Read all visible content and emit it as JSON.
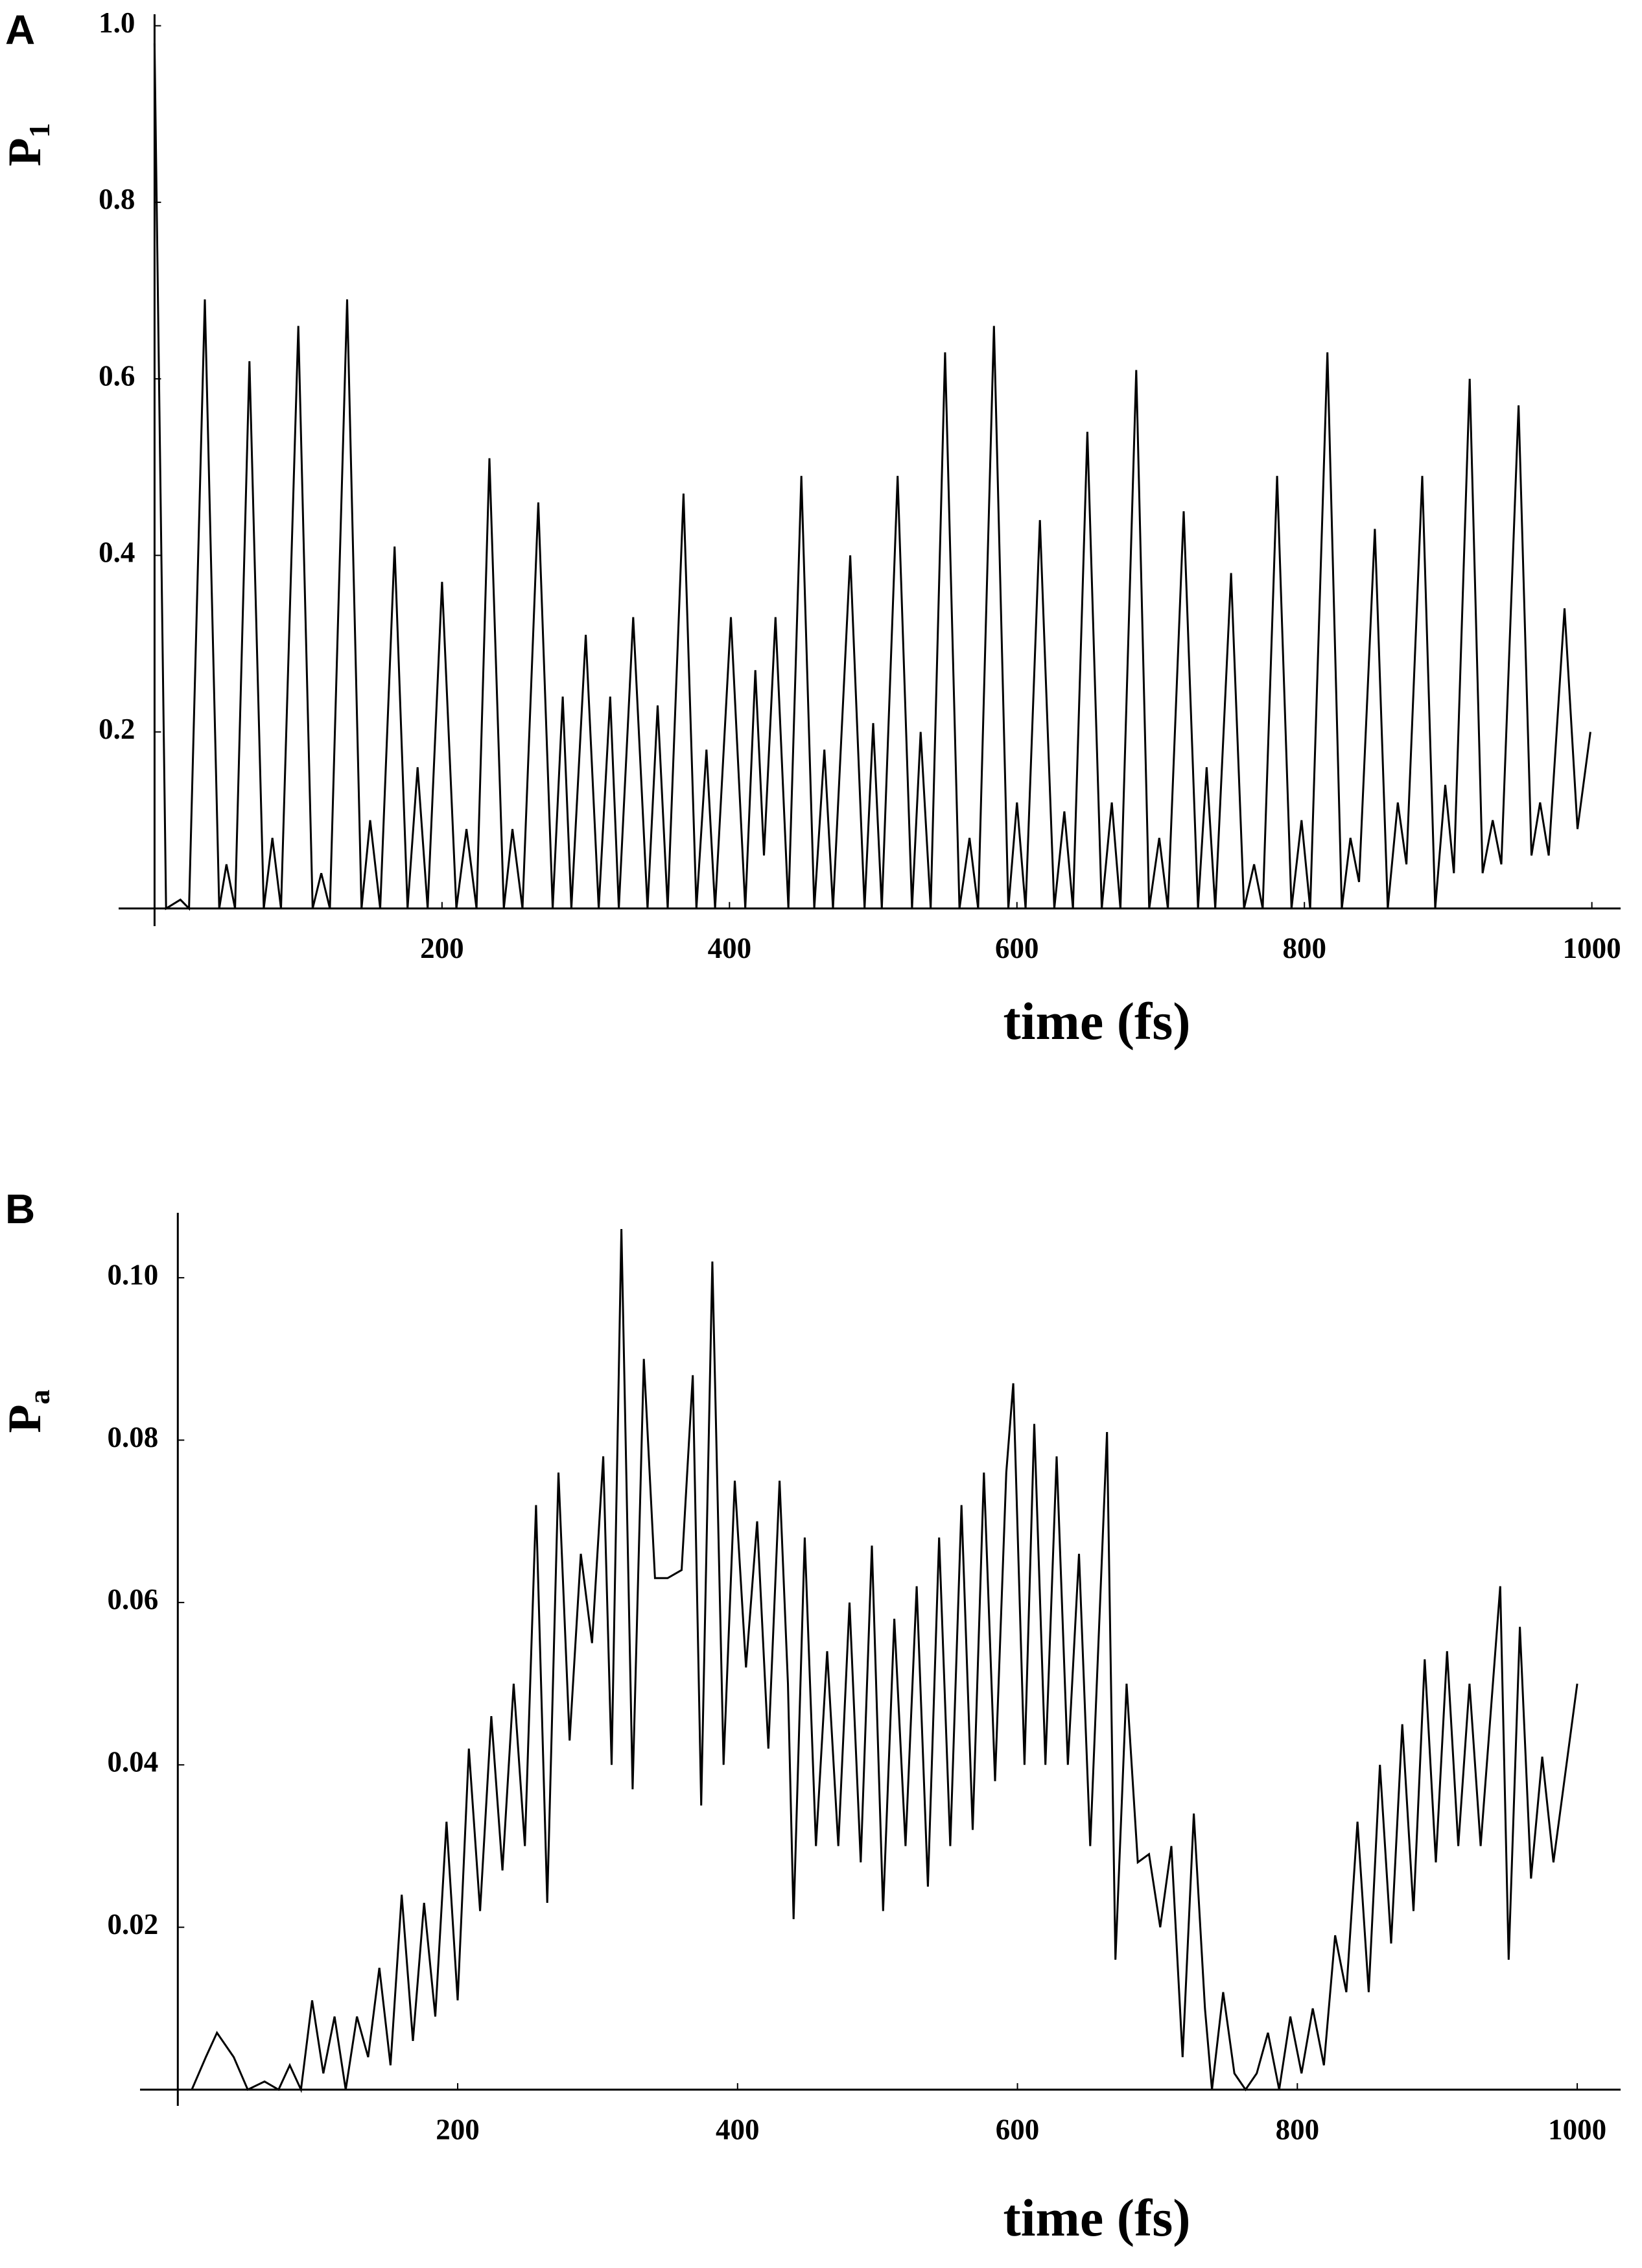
{
  "chart_data": [
    {
      "type": "line",
      "panel": "A",
      "ylabel": "P",
      "ylabel_sub": "1",
      "xlabel": "time (fs)",
      "xlim": [
        -25,
        1020
      ],
      "ylim": [
        -0.02,
        1.013
      ],
      "xticks": [
        200,
        400,
        600,
        800,
        1000
      ],
      "yticks": [
        0.2,
        0.4,
        0.6,
        0.8,
        {
          "value": 1,
          "label": "1.0"
        }
      ],
      "color": "#000000",
      "x": [
        0,
        8,
        18,
        24,
        35,
        45,
        50,
        56,
        66,
        76,
        82,
        88,
        100,
        110,
        116,
        122,
        134,
        144,
        150,
        157,
        167,
        176,
        183,
        190,
        200,
        210,
        217,
        224,
        233,
        243,
        249,
        256,
        267,
        277,
        284,
        290,
        300,
        309,
        317,
        323,
        333,
        343,
        350,
        357,
        368,
        377,
        384,
        390,
        401,
        411,
        418,
        424,
        432,
        441,
        450,
        459,
        466,
        472,
        484,
        494,
        500,
        506,
        517,
        527,
        533,
        540,
        550,
        560,
        567,
        573,
        584,
        594,
        600,
        606,
        616,
        626,
        633,
        639,
        649,
        659,
        666,
        672,
        683,
        692,
        699,
        705,
        716,
        726,
        732,
        738,
        749,
        758,
        765,
        771,
        781,
        791,
        798,
        804,
        816,
        826,
        832,
        838,
        849,
        858,
        865,
        871,
        882,
        891,
        898,
        904,
        915,
        924,
        931,
        937,
        949,
        958,
        964,
        970,
        981,
        990,
        999
      ],
      "values": [
        0.98,
        0,
        0.01,
        0,
        0.69,
        0,
        0.05,
        0,
        0.62,
        0,
        0.08,
        0,
        0.66,
        0,
        0.04,
        0,
        0.69,
        0,
        0.1,
        0,
        0.41,
        0,
        0.16,
        0,
        0.37,
        0,
        0.09,
        0,
        0.51,
        0,
        0.09,
        0,
        0.46,
        0,
        0.24,
        0,
        0.31,
        0,
        0.24,
        0,
        0.33,
        0,
        0.23,
        0,
        0.47,
        0,
        0.18,
        0,
        0.33,
        0,
        0.27,
        0.06,
        0.33,
        0,
        0.49,
        0,
        0.18,
        0,
        0.4,
        0,
        0.21,
        0,
        0.49,
        0,
        0.2,
        0,
        0.63,
        0,
        0.08,
        0,
        0.66,
        0,
        0.12,
        0,
        0.44,
        0,
        0.11,
        0,
        0.54,
        0,
        0.12,
        0,
        0.61,
        0,
        0.08,
        0,
        0.45,
        0,
        0.16,
        0,
        0.38,
        0,
        0.05,
        0,
        0.49,
        0,
        0.1,
        0,
        0.63,
        0,
        0.08,
        0.03,
        0.43,
        0,
        0.12,
        0.05,
        0.49,
        0,
        0.14,
        0.04,
        0.6,
        0.04,
        0.1,
        0.05,
        0.57,
        0.06,
        0.12,
        0.06,
        0.34,
        0.09,
        0.2
      ]
    },
    {
      "type": "line",
      "panel": "B",
      "ylabel": "P",
      "ylabel_sub": "a",
      "xlabel": "time (fs)",
      "xlim": [
        -27,
        1031
      ],
      "ylim": [
        -0.002,
        0.108
      ],
      "xticks": [
        200,
        400,
        600,
        800,
        1000
      ],
      "yticks": [
        0.02,
        0.04,
        0.06,
        0.08,
        {
          "value": 0.1,
          "label": "0.10"
        }
      ],
      "color": "#000000",
      "x": [
        0,
        10,
        20,
        28,
        40,
        50,
        62,
        72,
        80,
        88,
        96,
        104,
        112,
        120,
        128,
        136,
        144,
        152,
        160,
        168,
        176,
        184,
        192,
        200,
        208,
        216,
        224,
        232,
        240,
        248,
        256,
        264,
        272,
        280,
        288,
        296,
        304,
        310,
        317,
        325,
        333,
        341,
        350,
        360,
        368,
        374,
        382,
        390,
        398,
        406,
        414,
        422,
        430,
        436,
        440,
        448,
        456,
        464,
        472,
        480,
        488,
        496,
        504,
        512,
        520,
        528,
        536,
        544,
        552,
        560,
        568,
        576,
        584,
        592,
        597,
        605,
        612,
        620,
        628,
        636,
        644,
        652,
        664,
        670,
        678,
        686,
        694,
        702,
        710,
        718,
        726,
        734,
        739,
        747,
        755,
        763,
        771,
        779,
        787,
        795,
        803,
        811,
        819,
        827,
        835,
        843,
        851,
        859,
        867,
        875,
        883,
        891,
        899,
        907,
        915,
        923,
        931,
        945,
        951,
        959,
        967,
        975,
        983,
        1000
      ],
      "values": [
        0,
        0,
        0.004,
        0.007,
        0.004,
        0,
        0.001,
        0,
        0.003,
        0,
        0.011,
        0.002,
        0.009,
        0,
        0.009,
        0.004,
        0.015,
        0.003,
        0.024,
        0.006,
        0.023,
        0.009,
        0.033,
        0.011,
        0.042,
        0.022,
        0.046,
        0.027,
        0.05,
        0.03,
        0.072,
        0.023,
        0.076,
        0.043,
        0.066,
        0.055,
        0.078,
        0.04,
        0.106,
        0.037,
        0.09,
        0.063,
        0.063,
        0.064,
        0.088,
        0.035,
        0.102,
        0.04,
        0.075,
        0.052,
        0.07,
        0.042,
        0.075,
        0.05,
        0.021,
        0.068,
        0.03,
        0.054,
        0.03,
        0.06,
        0.028,
        0.067,
        0.022,
        0.058,
        0.03,
        0.062,
        0.025,
        0.068,
        0.03,
        0.072,
        0.032,
        0.076,
        0.038,
        0.076,
        0.087,
        0.04,
        0.082,
        0.04,
        0.078,
        0.04,
        0.066,
        0.03,
        0.081,
        0.016,
        0.05,
        0.028,
        0.029,
        0.02,
        0.03,
        0.004,
        0.034,
        0.01,
        0,
        0.012,
        0.002,
        0,
        0.002,
        0.007,
        0,
        0.009,
        0.002,
        0.01,
        0.003,
        0.019,
        0.012,
        0.033,
        0.012,
        0.04,
        0.018,
        0.045,
        0.022,
        0.053,
        0.028,
        0.054,
        0.03,
        0.05,
        0.03,
        0.062,
        0.016,
        0.057,
        0.026,
        0.041,
        0.028,
        0.05
      ]
    }
  ]
}
